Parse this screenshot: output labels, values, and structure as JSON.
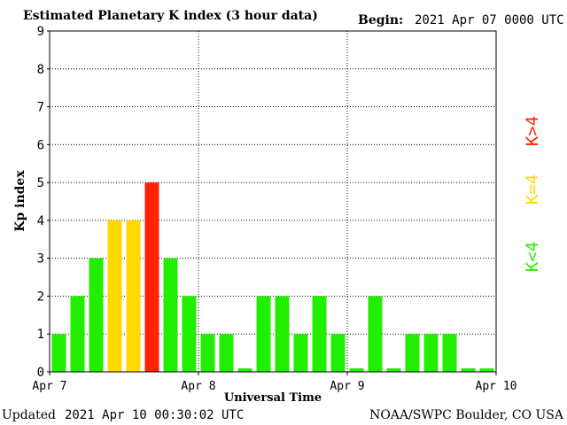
{
  "header": {
    "title": "Estimated Planetary K index (3 hour data)",
    "begin_label": "Begin:",
    "begin_value": "2021 Apr 07 0000 UTC"
  },
  "footer": {
    "updated_label": "Updated",
    "updated_value": "2021 Apr 10 00:30:02 UTC",
    "credit": "NOAA/SWPC Boulder, CO USA"
  },
  "legend": {
    "below": "K<4",
    "equal": "K=4",
    "above": "K>4"
  },
  "colors": {
    "below": "#22ee00",
    "equal": "#ffd800",
    "above": "#ff2200"
  },
  "chart_data": {
    "type": "bar",
    "title": "Estimated Planetary K index (3 hour data)",
    "xlabel": "Universal Time",
    "ylabel": "Kp index",
    "ylim": [
      0,
      9
    ],
    "yticks": [
      "0",
      "1",
      "2",
      "3",
      "4",
      "5",
      "6",
      "7",
      "8",
      "9"
    ],
    "xticks": [
      "Apr 7",
      "Apr 8",
      "Apr 9",
      "Apr 10"
    ],
    "grid": true,
    "values": [
      1,
      2,
      3,
      4,
      4,
      5,
      3,
      2,
      1,
      1,
      0,
      2,
      2,
      1,
      2,
      1,
      0,
      2,
      0,
      1,
      1,
      1,
      0,
      0
    ]
  }
}
